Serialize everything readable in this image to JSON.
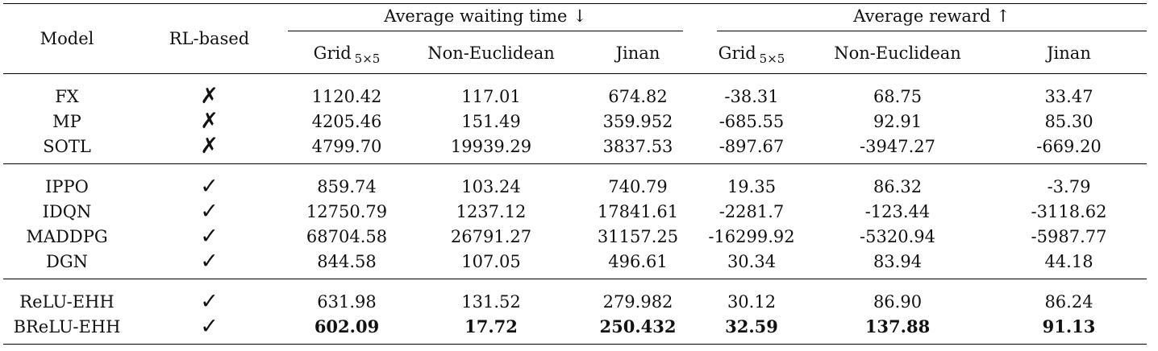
{
  "header": {
    "model": "Model",
    "rl": "RL-based",
    "group_wait": "Average waiting time ↓",
    "group_reward": "Average reward ↑",
    "cols": [
      "Grid",
      "Non-Euclidean",
      "Jinan",
      "Grid",
      "Non-Euclidean",
      "Jinan"
    ],
    "grid_sub": "5×5"
  },
  "marks": {
    "cross": "✗",
    "check": "✓"
  },
  "rows": [
    {
      "model": "FX",
      "rl": "✗",
      "v": [
        "1120.42",
        "117.01",
        "674.82",
        "-38.31",
        "68.75",
        "33.47"
      ]
    },
    {
      "model": "MP",
      "rl": "✗",
      "v": [
        "4205.46",
        "151.49",
        "359.952",
        "-685.55",
        "92.91",
        "85.30"
      ]
    },
    {
      "model": "SOTL",
      "rl": "✗",
      "v": [
        "4799.70",
        "19939.29",
        "3837.53",
        "-897.67",
        "-3947.27",
        "-669.20"
      ]
    },
    {
      "model": "IPPO",
      "rl": "✓",
      "v": [
        "859.74",
        "103.24",
        "740.79",
        "19.35",
        "86.32",
        "-3.79"
      ]
    },
    {
      "model": "IDQN",
      "rl": "✓",
      "v": [
        "12750.79",
        "1237.12",
        "17841.61",
        "-2281.7",
        "-123.44",
        "-3118.62"
      ]
    },
    {
      "model": "MADDPG",
      "rl": "✓",
      "v": [
        "68704.58",
        "26791.27",
        "31157.25",
        "-16299.92",
        "-5320.94",
        "-5987.77"
      ]
    },
    {
      "model": "DGN",
      "rl": "✓",
      "v": [
        "844.58",
        "107.05",
        "496.61",
        "30.34",
        "83.94",
        "44.18"
      ]
    },
    {
      "model": "ReLU-EHH",
      "rl": "✓",
      "v": [
        "631.98",
        "131.52",
        "279.982",
        "30.12",
        "86.90",
        "86.24"
      ]
    },
    {
      "model": "BReLU-EHH",
      "rl": "✓",
      "v": [
        "602.09",
        "17.72",
        "250.432",
        "32.59",
        "137.88",
        "91.13"
      ]
    }
  ]
}
